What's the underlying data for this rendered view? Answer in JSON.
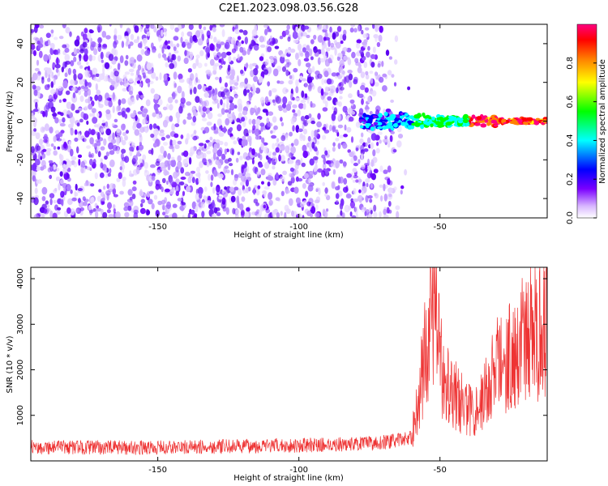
{
  "title": "C2E1.2023.098.03.56.G28",
  "chart_data": [
    {
      "type": "heatmap",
      "xlabel": "Height of straight line (km)",
      "ylabel": "Frequency (Hz)",
      "xlim": [
        -195,
        -12
      ],
      "ylim": [
        -50,
        50
      ],
      "xticks": [
        -150,
        -100,
        -50
      ],
      "yticks": [
        40,
        20,
        0,
        -20,
        -40
      ],
      "colorbar": {
        "label": "Normalized spectral amplitude",
        "range": [
          0.0,
          1.0
        ],
        "ticks": [
          0.0,
          0.2,
          0.4,
          0.6,
          0.8
        ],
        "tick_labels": [
          "0.0",
          "0.2",
          "0.4",
          "0.6",
          "0.8"
        ],
        "colormap": [
          "#ffffff",
          "#c8a0ff",
          "#6a00ff",
          "#0000ff",
          "#00ffff",
          "#00ff00",
          "#ffff00",
          "#ff8000",
          "#ff0000",
          "#ff0080"
        ]
      },
      "features": {
        "noise_region_height_km": [
          -195,
          -60
        ],
        "signal_line_height_km": [
          -78,
          -12
        ],
        "signal_frequency_hz": 0,
        "peak_amplitude_height_km": [
          -40,
          -14
        ]
      }
    },
    {
      "type": "line",
      "xlabel": "Height of straight line (km)",
      "ylabel": "SNR (10 * v/v)",
      "xlim": [
        -195,
        -12
      ],
      "ylim": [
        0,
        4250
      ],
      "xticks": [
        -150,
        -100,
        -50
      ],
      "yticks": [
        1000,
        2000,
        3000,
        4000
      ],
      "color": "#ee3333",
      "profile": {
        "height_km": [
          -195,
          -150,
          -100,
          -75,
          -65,
          -60,
          -58,
          -55,
          -53,
          -52,
          -50,
          -47,
          -44,
          -40,
          -35,
          -30,
          -25,
          -20,
          -15,
          -12
        ],
        "snr": [
          300,
          290,
          340,
          380,
          450,
          520,
          1200,
          2500,
          3200,
          4000,
          2100,
          1800,
          1400,
          1100,
          1300,
          2100,
          2300,
          2700,
          2900,
          3100
        ]
      }
    }
  ]
}
